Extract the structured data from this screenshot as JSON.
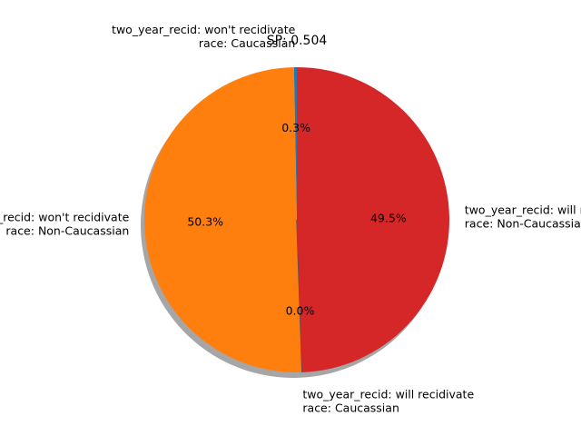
{
  "chart_data": {
    "type": "pie",
    "title": "SP: 0.504",
    "shadow": true,
    "slices": [
      {
        "label_lines": [
          "two_year_recid: won't recidivate",
          "race: Caucassian"
        ],
        "value": 0.3,
        "pct": "0.3%",
        "color": "#1f77b4"
      },
      {
        "label_lines": [
          "two_year_recid: won't recidivate",
          "race: Non-Caucassian"
        ],
        "value": 50.3,
        "pct": "50.3%",
        "color": "#ff7f0e"
      },
      {
        "label_lines": [
          "two_year_recid: will recidivate",
          "race: Caucassian"
        ],
        "value": 0.0,
        "pct": "0.0%",
        "color": "#2ca02c"
      },
      {
        "label_lines": [
          "two_year_recid: will recidivate",
          "race: Non-Caucassian"
        ],
        "value": 49.5,
        "pct": "49.5%",
        "color": "#d62728"
      }
    ]
  }
}
